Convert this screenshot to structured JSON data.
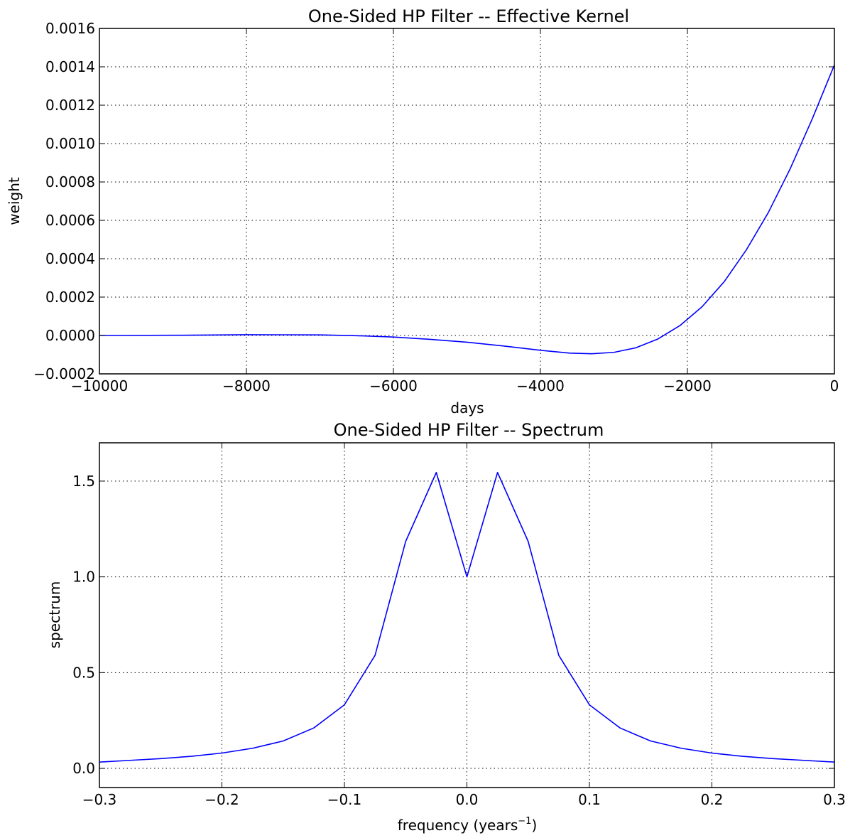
{
  "colors": {
    "series": "#0000ff"
  },
  "chart_data": [
    {
      "type": "line",
      "title": "One-Sided HP Filter -- Effective Kernel",
      "xlabel": "days",
      "ylabel": "weight",
      "xlim": [
        -10000,
        0
      ],
      "ylim": [
        -0.0002,
        0.0016
      ],
      "grid": true,
      "xticks": [
        -10000,
        -8000,
        -6000,
        -4000,
        -2000,
        0
      ],
      "xtick_labels": [
        "−10000",
        "−8000",
        "−6000",
        "−4000",
        "−2000",
        "0"
      ],
      "yticks": [
        -0.0002,
        0.0,
        0.0002,
        0.0004,
        0.0006,
        0.0008,
        0.001,
        0.0012,
        0.0014,
        0.0016
      ],
      "ytick_labels": [
        "−0.0002",
        "0.0000",
        "0.0002",
        "0.0004",
        "0.0006",
        "0.0008",
        "0.0010",
        "0.0012",
        "0.0014",
        "0.0016"
      ],
      "series": [
        {
          "x": [
            -10000,
            -9000,
            -8000,
            -7000,
            -6500,
            -6000,
            -5500,
            -5000,
            -4500,
            -4000,
            -3600,
            -3300,
            -3000,
            -2700,
            -2400,
            -2100,
            -1800,
            -1500,
            -1200,
            -900,
            -600,
            -300,
            0
          ],
          "y": [
            0.0,
            1e-06,
            4e-06,
            3e-06,
            -1e-06,
            -8e-06,
            -2e-05,
            -3.5e-05,
            -5.5e-05,
            -7.7e-05,
            -9.2e-05,
            -9.5e-05,
            -8.8e-05,
            -6.4e-05,
            -1.8e-05,
            5.2e-05,
            0.00015,
            0.00028,
            0.000445,
            0.00064,
            0.00087,
            0.00113,
            0.00141
          ]
        }
      ]
    },
    {
      "type": "line",
      "title": "One-Sided HP Filter -- Spectrum",
      "xlabel": "frequency (years",
      "xlabel_sup": "−1",
      "xlabel_end": ")",
      "ylabel": "spectrum",
      "xlim": [
        -0.3,
        0.3
      ],
      "ylim": [
        -0.1,
        1.7
      ],
      "grid": true,
      "xticks": [
        -0.3,
        -0.2,
        -0.1,
        0.0,
        0.1,
        0.2,
        0.3
      ],
      "xtick_labels": [
        "−0.3",
        "−0.2",
        "−0.1",
        "0.0",
        "0.1",
        "0.2",
        "0.3"
      ],
      "yticks": [
        0.0,
        0.5,
        1.0,
        1.5
      ],
      "ytick_labels": [
        "0.0",
        "0.5",
        "1.0",
        "1.5"
      ],
      "series": [
        {
          "x": [
            -0.3,
            -0.275,
            -0.25,
            -0.225,
            -0.2,
            -0.175,
            -0.15,
            -0.125,
            -0.1,
            -0.075,
            -0.05,
            -0.025,
            0.0,
            0.025,
            0.05,
            0.075,
            0.1,
            0.125,
            0.15,
            0.175,
            0.2,
            0.225,
            0.25,
            0.275,
            0.3
          ],
          "y": [
            0.033,
            0.042,
            0.051,
            0.063,
            0.08,
            0.105,
            0.143,
            0.211,
            0.332,
            0.59,
            1.185,
            1.545,
            1.0,
            1.545,
            1.185,
            0.59,
            0.332,
            0.211,
            0.143,
            0.105,
            0.08,
            0.063,
            0.051,
            0.042,
            0.033
          ]
        }
      ]
    }
  ]
}
